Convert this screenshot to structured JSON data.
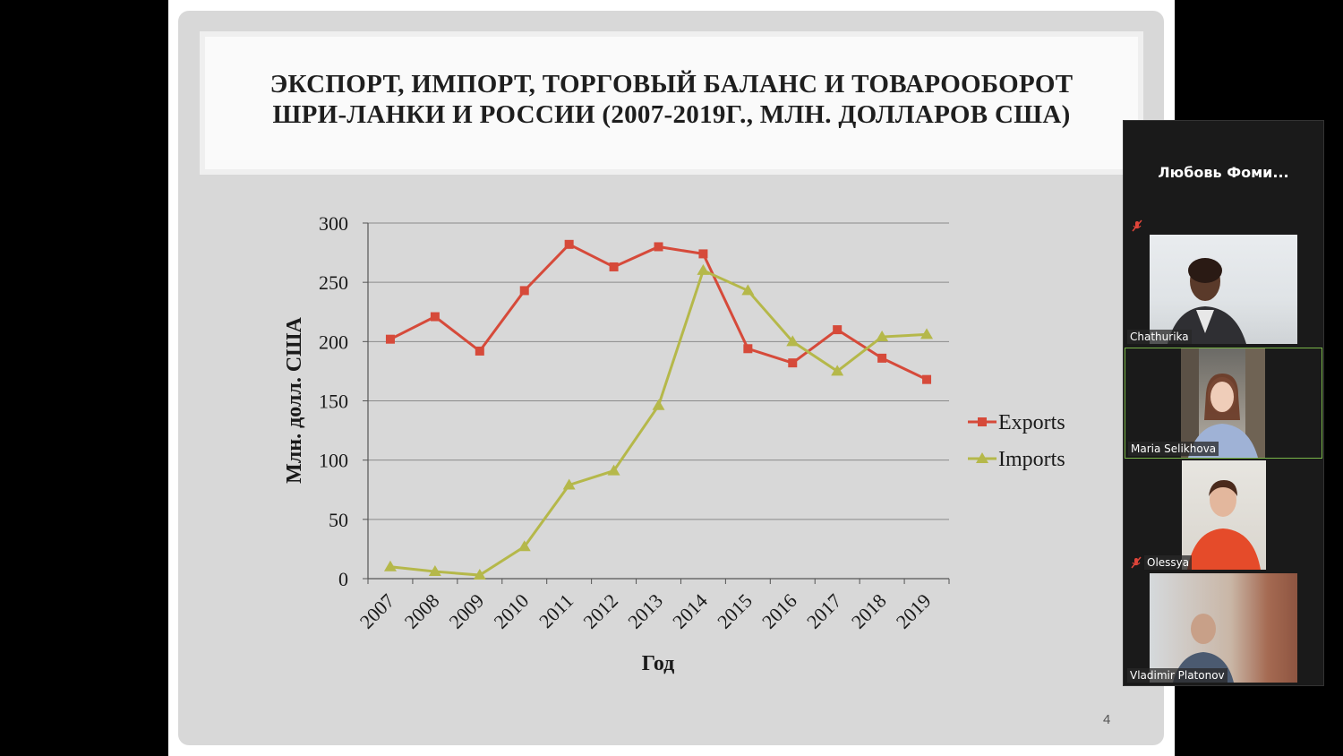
{
  "slide": {
    "title_line1": "ЭКСПОРТ, ИМПОРТ, ТОРГОВЫЙ БАЛАНС И ТОВАРООБОРОТ",
    "title_line2": "ШРИ-ЛАНКИ И РОССИИ (2007-2019Г., МЛН. ДОЛЛАРОВ США)",
    "page_number": "4"
  },
  "chart_data": {
    "type": "line",
    "xlabel": "Год",
    "ylabel": "Млн. долл. США",
    "ylim": [
      0,
      300
    ],
    "yticks": [
      0,
      50,
      100,
      150,
      200,
      250,
      300
    ],
    "categories": [
      "2007",
      "2008",
      "2009",
      "2010",
      "2011",
      "2012",
      "2013",
      "2014",
      "2015",
      "2016",
      "2017",
      "2018",
      "2019"
    ],
    "grid": true,
    "legend": "right",
    "series": [
      {
        "name": "Exports",
        "color": "#d64a3a",
        "marker": "square",
        "values": [
          202,
          221,
          192,
          243,
          282,
          263,
          280,
          274,
          194,
          182,
          210,
          186,
          168
        ]
      },
      {
        "name": "Imports",
        "color": "#b5b84a",
        "marker": "triangle",
        "values": [
          10,
          6,
          3,
          27,
          79,
          91,
          146,
          260,
          243,
          200,
          175,
          204,
          206
        ]
      }
    ]
  },
  "participants": {
    "host_name": "Любовь Фоми...",
    "tiles": [
      {
        "name": "Chathurika",
        "muted": false,
        "active": false
      },
      {
        "name": "Maria Selikhova",
        "muted": false,
        "active": true
      },
      {
        "name": "Olessya",
        "muted": true,
        "active": false
      },
      {
        "name": "Vladimir Platonov",
        "muted": false,
        "active": false
      }
    ],
    "colors": {
      "active_border": "#7ab648",
      "muted_icon": "#e0453a"
    }
  }
}
